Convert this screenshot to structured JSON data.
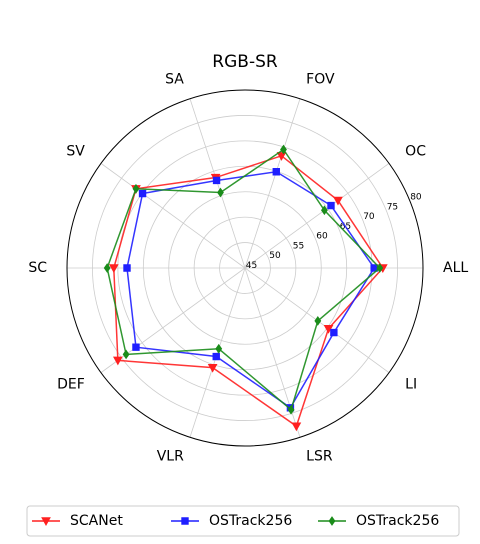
{
  "chart_data": {
    "type": "radar",
    "title": "RGB-SR",
    "categories": [
      "ALL",
      "OC",
      "FOV",
      "SA",
      "SV",
      "SC",
      "DEF",
      "VLR",
      "LSR",
      "LI"
    ],
    "series": [
      {
        "name": "SCANet",
        "color": "#ff2020",
        "marker": "triangle-down",
        "values": [
          72.1,
          67.6,
          68.2,
          63.7,
          71.5,
          70.8,
          75.9,
          65.6,
          77.7,
          65.3
        ]
      },
      {
        "name": "OSTrack256",
        "color": "#1f1fff",
        "marker": "square",
        "values": [
          70.4,
          65.9,
          64.9,
          63.1,
          69.9,
          68.2,
          71.5,
          63.3,
          73.9,
          66.6
        ]
      },
      {
        "name": "OSTrack256",
        "color": "#1a8c1a",
        "marker": "diamond",
        "values": [
          71.5,
          64.3,
          69.5,
          60.6,
          71.5,
          72.1,
          73.9,
          61.7,
          74.3,
          62.7
        ]
      }
    ],
    "rlim": [
      45,
      80
    ],
    "rticks": [
      45,
      50,
      55,
      60,
      65,
      70,
      75,
      80
    ],
    "grid": true,
    "legend": "bottom"
  }
}
